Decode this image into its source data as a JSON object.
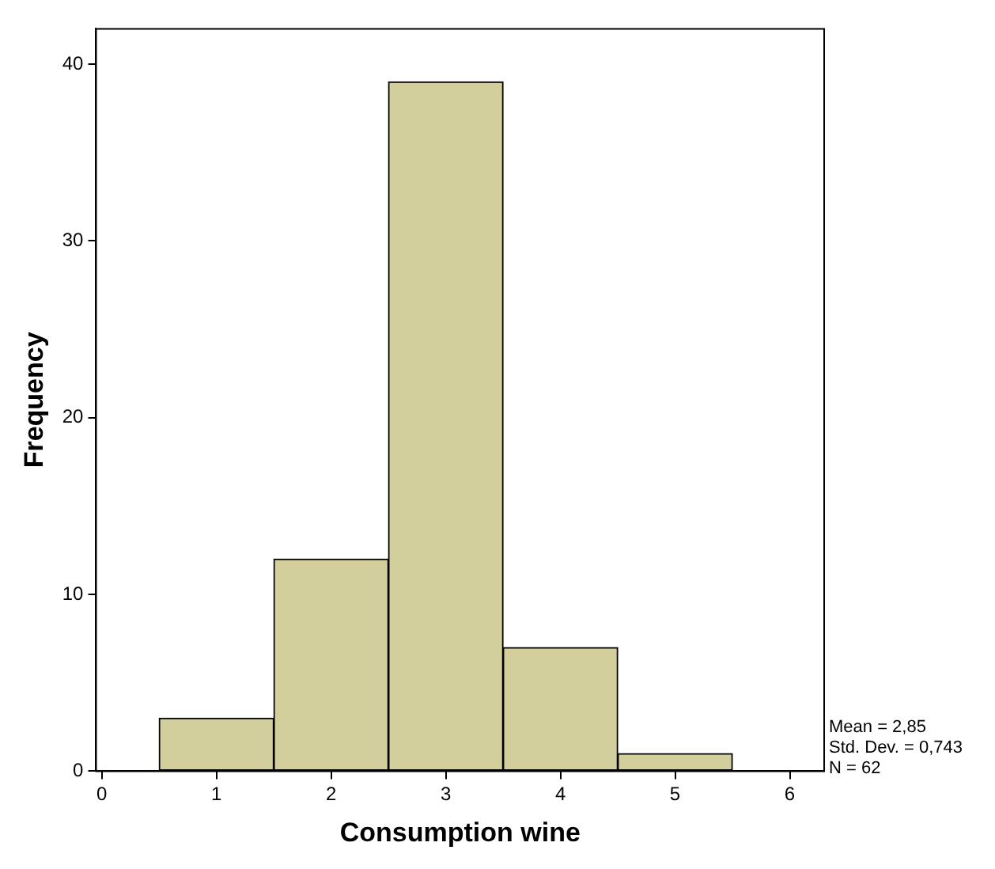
{
  "chart_data": {
    "type": "histogram",
    "xlabel": "Consumption wine",
    "ylabel": "Frequency",
    "bins": [
      0.5,
      1.5,
      2.5,
      3.5,
      4.5,
      5.5
    ],
    "values": [
      3,
      12,
      39,
      7,
      1
    ],
    "color": "#d3cf9c",
    "xlim": [
      -0.05,
      6.3
    ],
    "xticks": [
      0,
      1,
      2,
      3,
      4,
      5,
      6
    ],
    "ylim": [
      0,
      42
    ],
    "yticks": [
      0,
      10,
      20,
      30,
      40
    ],
    "grid": false,
    "legend": false,
    "annotations": [
      "Mean = 2,85",
      "Std. Dev. = 0,743",
      "N = 62"
    ]
  }
}
